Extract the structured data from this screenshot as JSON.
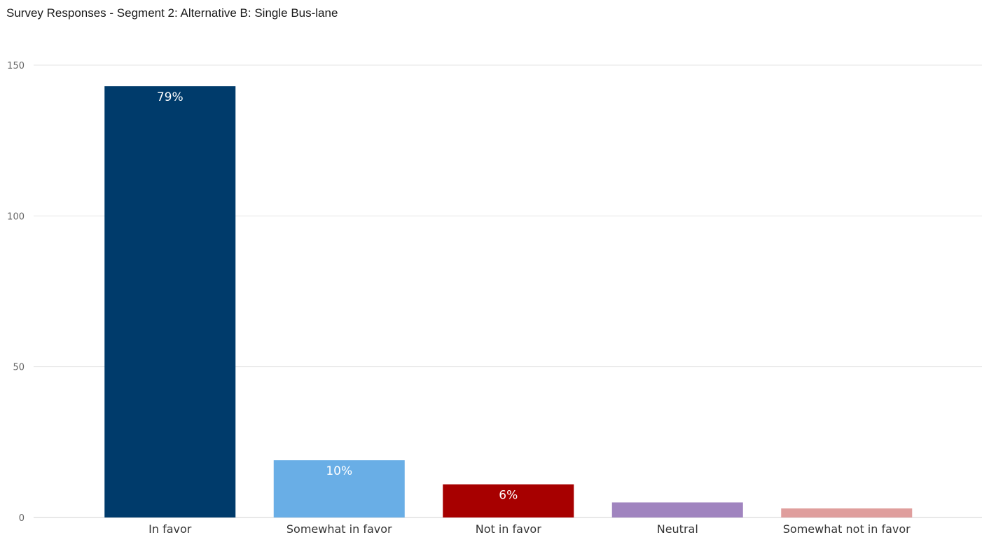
{
  "chart_data": {
    "type": "bar",
    "title": "Survey Responses - Segment 2: Alternative B: Single Bus-lane",
    "xlabel": "",
    "ylabel": "",
    "ylim": [
      0,
      150
    ],
    "yticks": [
      0,
      50,
      100,
      150
    ],
    "grid": true,
    "legend": "none",
    "categories": [
      "In favor",
      "Somewhat in favor",
      "Not in favor",
      "Neutral",
      "Somewhat not in favor"
    ],
    "values": [
      143,
      19,
      11,
      5,
      3
    ],
    "data_labels": [
      "79%",
      "10%",
      "6%",
      "",
      ""
    ],
    "colors": [
      "#003b6b",
      "#69aee6",
      "#a70000",
      "#a084bf",
      "#df9e9d"
    ]
  }
}
